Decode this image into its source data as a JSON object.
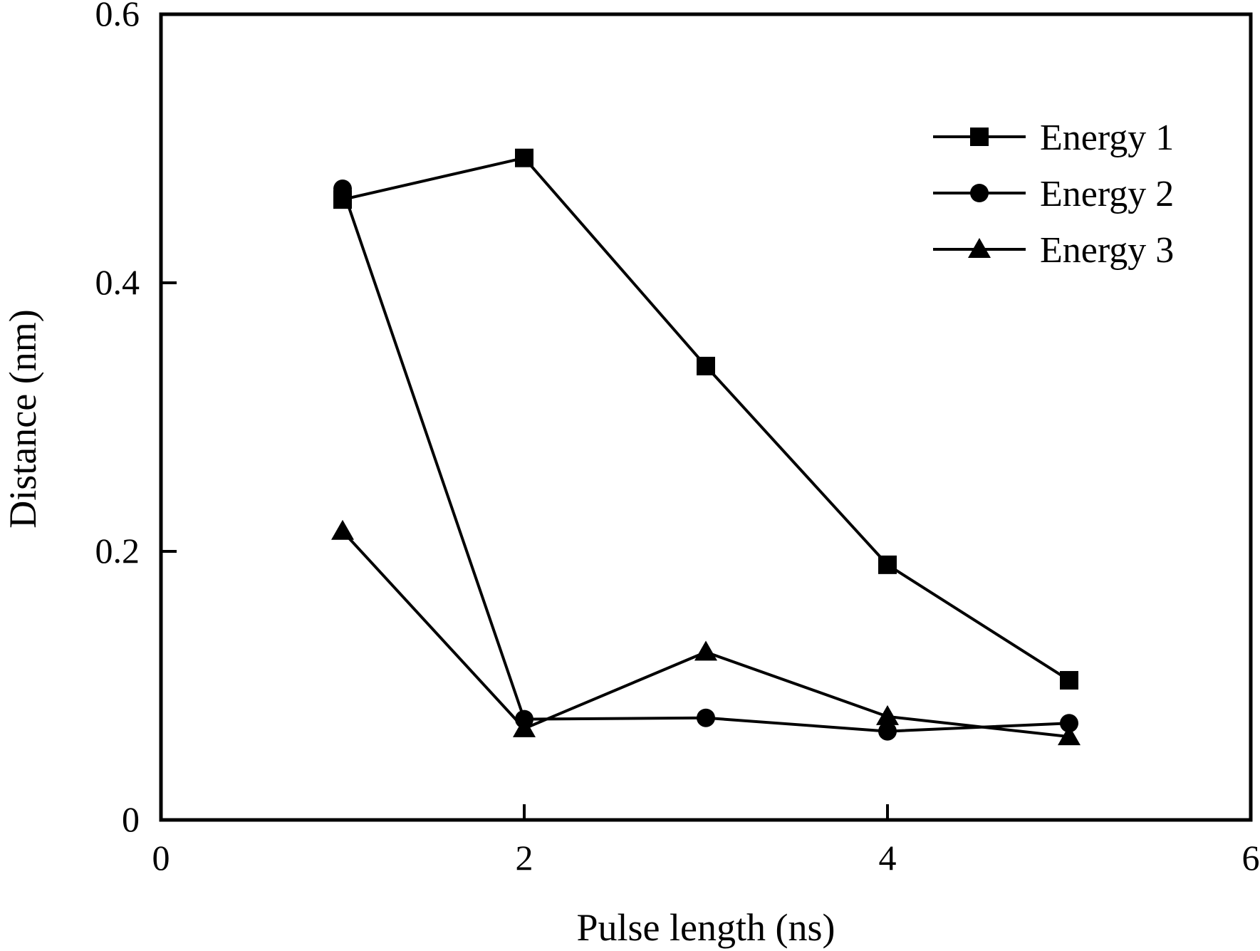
{
  "chart_data": {
    "type": "line",
    "xlabel": "Pulse length (ns)",
    "ylabel": "Distance (nm)",
    "xlim": [
      0,
      6
    ],
    "ylim": [
      0,
      0.6
    ],
    "xticks": [
      0,
      2,
      4,
      6
    ],
    "yticks": [
      0,
      0.2,
      0.4,
      0.6
    ],
    "xtick_labels": [
      "0",
      "2",
      "4",
      "6"
    ],
    "ytick_labels": [
      "0",
      "0.2",
      "0.4",
      "0.6"
    ],
    "grid": false,
    "legend_position": "top-right",
    "series": [
      {
        "name": "Energy 1",
        "marker": "square",
        "x": [
          1,
          2,
          3,
          4,
          5
        ],
        "y": [
          0.462,
          0.493,
          0.338,
          0.19,
          0.104
        ]
      },
      {
        "name": "Energy 2",
        "marker": "circle",
        "x": [
          1,
          2,
          3,
          4,
          5
        ],
        "y": [
          0.47,
          0.075,
          0.076,
          0.066,
          0.072
        ]
      },
      {
        "name": "Energy 3",
        "marker": "triangle",
        "x": [
          1,
          2,
          3,
          4,
          5
        ],
        "y": [
          0.215,
          0.068,
          0.125,
          0.077,
          0.062
        ]
      }
    ]
  }
}
